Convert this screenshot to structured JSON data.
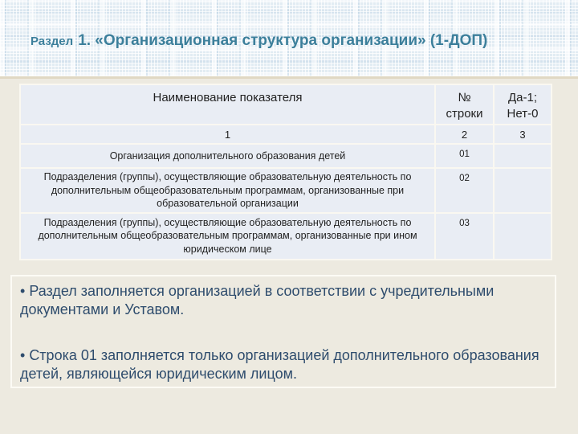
{
  "slide": {
    "title": {
      "prefix": "Раздел",
      "main": "1. «Организационная структура организации» (1-ДОП)"
    },
    "colors": {
      "page_bg": "#EDEAE0",
      "band_bg": "#E2ECF3",
      "title_text": "#3C7F9B",
      "table_cell_bg": "#E9EDF4",
      "table_border": "#FAF8F1",
      "notes_text": "#2E4C6D"
    }
  },
  "table": {
    "columns": [
      {
        "label": "Наименование показателя",
        "guide": "1"
      },
      {
        "label": "№\nстроки",
        "guide": "2"
      },
      {
        "label": "Да-1;\nНет-0",
        "guide": "3"
      }
    ],
    "rows": [
      {
        "name": "Организация дополнительного образования детей",
        "line": "01",
        "value": ""
      },
      {
        "name": "Подразделения (группы), осуществляющие образовательную деятельность по дополнительным общеобразовательным программам, организованные при образовательной организации",
        "line": "02",
        "value": ""
      },
      {
        "name": "Подразделения (группы), осуществляющие образовательную деятельность по дополнительным общеобразовательным программам, организованные при ином юридическом лице",
        "line": "03",
        "value": ""
      }
    ]
  },
  "notes": {
    "bullet": "•",
    "items": [
      "Раздел заполняется организацией в соответствии с учредительными документами и Уставом.",
      "Строка 01 заполняется только организацией дополнительного образования детей, являющейся юридическим лицом."
    ]
  }
}
